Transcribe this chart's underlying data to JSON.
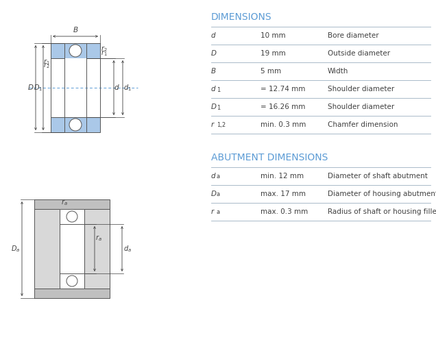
{
  "bg_color": "#ffffff",
  "dim_title": "DIMENSIONS",
  "abut_title": "ABUTMENT DIMENSIONS",
  "title_color": "#5b9bd5",
  "label_color": "#404040",
  "line_color": "#404040",
  "bearing_blue": "#aac8e8",
  "bearing_outline": "#555555",
  "gray_fill": "#c0c0c0",
  "gray_light": "#d8d8d8",
  "dim_rows": [
    {
      "sym": "d",
      "sub": "",
      "val": "10 mm",
      "desc": "Bore diameter"
    },
    {
      "sym": "D",
      "sub": "",
      "val": "19 mm",
      "desc": "Outside diameter"
    },
    {
      "sym": "B",
      "sub": "",
      "val": "5 mm",
      "desc": "Width"
    },
    {
      "sym": "d",
      "sub": "1",
      "val": "= 12.74 mm",
      "desc": "Shoulder diameter"
    },
    {
      "sym": "D",
      "sub": "1",
      "val": "= 16.26 mm",
      "desc": "Shoulder diameter"
    },
    {
      "sym": "r",
      "sub": "1,2",
      "val": "min. 0.3 mm",
      "desc": "Chamfer dimension"
    }
  ],
  "abut_rows": [
    {
      "sym": "d",
      "sub": "a",
      "val": "min. 12 mm",
      "desc": "Diameter of shaft abutment"
    },
    {
      "sym": "D",
      "sub": "a",
      "val": "max. 17 mm",
      "desc": "Diameter of housing abutment"
    },
    {
      "sym": "r",
      "sub": "a",
      "val": "max. 0.3 mm",
      "desc": "Radius of shaft or housing fillet"
    }
  ],
  "font_size_title": 10,
  "font_size_label": 7.5,
  "font_size_sym": 7.5
}
